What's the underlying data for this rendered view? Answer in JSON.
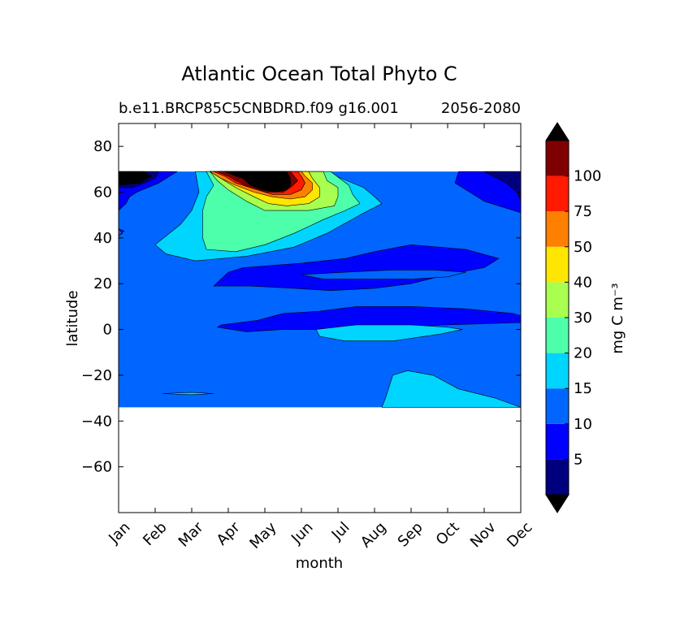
{
  "chart_data": {
    "type": "contourf",
    "title": "Atlantic Ocean Total Phyto C",
    "subtitle_left": "b.e11.BRCP85C5CNBDRD.f09 g16.001",
    "subtitle_right": "2056-2080",
    "xlabel": "month",
    "ylabel": "latitude",
    "x_tick_labels": [
      "Jan",
      "Feb",
      "Mar",
      "Apr",
      "May",
      "Jun",
      "Jul",
      "Aug",
      "Sep",
      "Oct",
      "Nov",
      "Dec"
    ],
    "y_ticks": [
      80,
      60,
      40,
      20,
      0,
      -20,
      -40,
      -60
    ],
    "y_tick_labels": [
      "80",
      "60",
      "40",
      "20",
      "0",
      "−20",
      "−40",
      "−60"
    ],
    "ylim": [
      -80,
      90
    ],
    "data_lat_range": [
      -34,
      69
    ],
    "colorbar": {
      "label": "mg C m⁻³",
      "levels": [
        0,
        5,
        10,
        15,
        20,
        30,
        40,
        50,
        75,
        100,
        125
      ],
      "tick_values": [
        5,
        10,
        15,
        20,
        30,
        40,
        50,
        75,
        100
      ],
      "tick_labels": [
        "5",
        "10",
        "15",
        "20",
        "30",
        "40",
        "50",
        "75",
        "100"
      ],
      "colors": [
        "#00007f",
        "#0000ff",
        "#0066ff",
        "#00d5ff",
        "#4dffab",
        "#a8ff4f",
        "#ffe600",
        "#ff8000",
        "#ff1a00",
        "#7f0000"
      ],
      "extend_colors": {
        "under": "#000000",
        "over": "#000000"
      }
    },
    "background_band": {
      "value_bin": 2,
      "color": "#0066ff"
    },
    "regions": [
      {
        "level_bin": 1,
        "name": "north-cap-west",
        "lat": [
          [
            69,
            0
          ],
          [
            69,
            1.6
          ],
          [
            67,
            1.4
          ],
          [
            64,
            1.1
          ],
          [
            62,
            0.8
          ],
          [
            60,
            0.5
          ],
          [
            58,
            0.3
          ],
          [
            55,
            0.2
          ],
          [
            52,
            0
          ]
        ]
      },
      {
        "level_bin": 0,
        "name": "north-cap-west-dark",
        "lat": [
          [
            69,
            0
          ],
          [
            69,
            1.1
          ],
          [
            66,
            1.0
          ],
          [
            64,
            0.7
          ],
          [
            62,
            0.4
          ],
          [
            62,
            0
          ]
        ]
      },
      {
        "level_bin": -1,
        "name": "north-cap-west-black",
        "lat": [
          [
            69,
            0
          ],
          [
            69,
            0.7
          ],
          [
            67,
            0.9
          ],
          [
            64,
            0.6
          ],
          [
            63,
            0
          ]
        ]
      },
      {
        "level_bin": 1,
        "name": "north-cap-east",
        "lat": [
          [
            69,
            9.3
          ],
          [
            64,
            9.2
          ],
          [
            59,
            9.7
          ],
          [
            56,
            10.0
          ],
          [
            51,
            11.0
          ],
          [
            51,
            11.0
          ],
          [
            69,
            11.0
          ]
        ]
      },
      {
        "level_bin": 0,
        "name": "north-cap-east-dark",
        "lat": [
          [
            69,
            10.0
          ],
          [
            64,
            10.6
          ],
          [
            60,
            10.9
          ],
          [
            56,
            11.0
          ],
          [
            69,
            11.0
          ]
        ]
      },
      {
        "level_bin": 3,
        "name": "spring-bloom-outer",
        "lat": [
          [
            69,
            2.1
          ],
          [
            60,
            2.2
          ],
          [
            52,
            2.0
          ],
          [
            46,
            1.7
          ],
          [
            37,
            1.0
          ],
          [
            33,
            1.3
          ],
          [
            30,
            2.1
          ],
          [
            32,
            3.5
          ],
          [
            36,
            4.8
          ],
          [
            42,
            5.7
          ],
          [
            50,
            6.6
          ],
          [
            55,
            7.2
          ],
          [
            58,
            7.0
          ],
          [
            62,
            6.7
          ],
          [
            66,
            6.1
          ],
          [
            69,
            5.6
          ]
        ]
      },
      {
        "level_bin": 4,
        "name": "spring-bloom-mid",
        "lat": [
          [
            69,
            2.4
          ],
          [
            63,
            2.6
          ],
          [
            58,
            2.4
          ],
          [
            52,
            2.3
          ],
          [
            46,
            2.3
          ],
          [
            40,
            2.3
          ],
          [
            35,
            2.4
          ],
          [
            34,
            3.2
          ],
          [
            37,
            4.0
          ],
          [
            42,
            4.8
          ],
          [
            48,
            5.6
          ],
          [
            52,
            6.2
          ],
          [
            55,
            6.6
          ],
          [
            59,
            6.4
          ],
          [
            63,
            6.3
          ],
          [
            69,
            5.8
          ]
        ]
      },
      {
        "level_bin": 5,
        "name": "bloom-40",
        "lat": [
          [
            69,
            2.5
          ],
          [
            65,
            2.7
          ],
          [
            61,
            3.0
          ],
          [
            56,
            3.5
          ],
          [
            52,
            4.0
          ],
          [
            52,
            5.2
          ],
          [
            54,
            5.9
          ],
          [
            58,
            6.0
          ],
          [
            62,
            6.0
          ],
          [
            65,
            5.7
          ],
          [
            69,
            5.6
          ]
        ]
      },
      {
        "level_bin": 6,
        "name": "bloom-50",
        "lat": [
          [
            69,
            2.5
          ],
          [
            66,
            2.8
          ],
          [
            62,
            3.2
          ],
          [
            58,
            3.7
          ],
          [
            55,
            4.1
          ],
          [
            54,
            4.6
          ],
          [
            55,
            5.2
          ],
          [
            58,
            5.5
          ],
          [
            62,
            5.5
          ],
          [
            66,
            5.3
          ],
          [
            69,
            5.2
          ]
        ]
      },
      {
        "level_bin": 7,
        "name": "bloom-75",
        "lat": [
          [
            69,
            2.5
          ],
          [
            66,
            2.8
          ],
          [
            63,
            3.2
          ],
          [
            60,
            3.7
          ],
          [
            58,
            4.2
          ],
          [
            57,
            4.7
          ],
          [
            58,
            5.1
          ],
          [
            61,
            5.3
          ],
          [
            64,
            5.3
          ],
          [
            67,
            5.1
          ],
          [
            69,
            5.0
          ]
        ]
      },
      {
        "level_bin": 8,
        "name": "bloom-100",
        "lat": [
          [
            69,
            2.6
          ],
          [
            67,
            2.9
          ],
          [
            64,
            3.2
          ],
          [
            61,
            3.8
          ],
          [
            59,
            4.2
          ],
          [
            59,
            4.7
          ],
          [
            61,
            5.0
          ],
          [
            64,
            5.1
          ],
          [
            67,
            5.0
          ],
          [
            69,
            4.9
          ]
        ]
      },
      {
        "level_bin": 9,
        "name": "bloom-125",
        "lat": [
          [
            69,
            2.7
          ],
          [
            67,
            3.0
          ],
          [
            65,
            3.2
          ],
          [
            62,
            3.6
          ],
          [
            60,
            4.0
          ],
          [
            60,
            4.5
          ],
          [
            62,
            4.7
          ],
          [
            65,
            4.9
          ],
          [
            67,
            4.8
          ],
          [
            69,
            4.7
          ]
        ]
      },
      {
        "level_bin": -1,
        "name": "bloom-over",
        "lat": [
          [
            69,
            2.9
          ],
          [
            67,
            3.2
          ],
          [
            66,
            3.4
          ],
          [
            63,
            3.6
          ],
          [
            61,
            3.9
          ],
          [
            60,
            4.3
          ],
          [
            61,
            4.6
          ],
          [
            63,
            4.7
          ],
          [
            66,
            4.7
          ],
          [
            69,
            4.6
          ]
        ]
      },
      {
        "level_bin": 1,
        "name": "band-30N",
        "lat": [
          [
            27,
            3.4
          ],
          [
            29,
            5.0
          ],
          [
            31,
            6.2
          ],
          [
            34,
            7.0
          ],
          [
            37,
            8.0
          ],
          [
            35,
            9.5
          ],
          [
            31,
            10.4
          ],
          [
            27,
            10.0
          ],
          [
            24,
            9.0
          ],
          [
            20,
            8.0
          ],
          [
            18,
            7.0
          ],
          [
            17,
            5.8
          ],
          [
            18,
            4.8
          ],
          [
            19,
            3.6
          ],
          [
            19,
            2.6
          ],
          [
            22,
            2.8
          ],
          [
            25,
            3.0
          ]
        ]
      },
      {
        "level_bin": 2,
        "name": "band-30N-gap",
        "lat": [
          [
            24,
            5.0
          ],
          [
            25,
            6.2
          ],
          [
            26,
            7.5
          ],
          [
            26,
            8.6
          ],
          [
            25,
            9.5
          ],
          [
            23,
            9.0
          ],
          [
            22,
            8.0
          ],
          [
            22,
            6.8
          ],
          [
            22,
            5.6
          ]
        ]
      },
      {
        "level_bin": 1,
        "name": "band-eq",
        "lat": [
          [
            2,
            2.8
          ],
          [
            4,
            3.8
          ],
          [
            7,
            4.5
          ],
          [
            8,
            5.5
          ],
          [
            10,
            6.5
          ],
          [
            10,
            8.0
          ],
          [
            9,
            9.5
          ],
          [
            7,
            10.8
          ],
          [
            6,
            11.0
          ],
          [
            3,
            11.0
          ],
          [
            2,
            9.0
          ],
          [
            1,
            7.5
          ],
          [
            0,
            6.0
          ],
          [
            0,
            4.5
          ],
          [
            -1,
            3.5
          ],
          [
            1,
            2.7
          ]
        ]
      },
      {
        "level_bin": 3,
        "name": "eq-lens",
        "lat": [
          [
            0,
            5.4
          ],
          [
            2,
            6.5
          ],
          [
            2,
            8.0
          ],
          [
            1,
            9.0
          ],
          [
            0,
            9.4
          ],
          [
            -2,
            8.8
          ],
          [
            -5,
            7.5
          ],
          [
            -5,
            6.2
          ],
          [
            -3,
            5.5
          ]
        ]
      },
      {
        "level_bin": 3,
        "name": "south-patch",
        "lat": [
          [
            -34,
            7.2
          ],
          [
            -30,
            7.3
          ],
          [
            -25,
            7.4
          ],
          [
            -20,
            7.5
          ],
          [
            -18,
            7.9
          ],
          [
            -20,
            8.6
          ],
          [
            -26,
            9.3
          ],
          [
            -30,
            10.3
          ],
          [
            -34,
            11.0
          ]
        ]
      },
      {
        "level_bin": 3,
        "name": "south-sliver",
        "lat": [
          [
            -28,
            1.2
          ],
          [
            -27.5,
            2.0
          ],
          [
            -28,
            2.6
          ],
          [
            -28.5,
            2.0
          ]
        ]
      },
      {
        "level_bin": 1,
        "name": "west-dip",
        "lat": [
          [
            44,
            0
          ],
          [
            43,
            0.15
          ],
          [
            41,
            0
          ],
          [
            42,
            0.1
          ]
        ]
      }
    ]
  }
}
